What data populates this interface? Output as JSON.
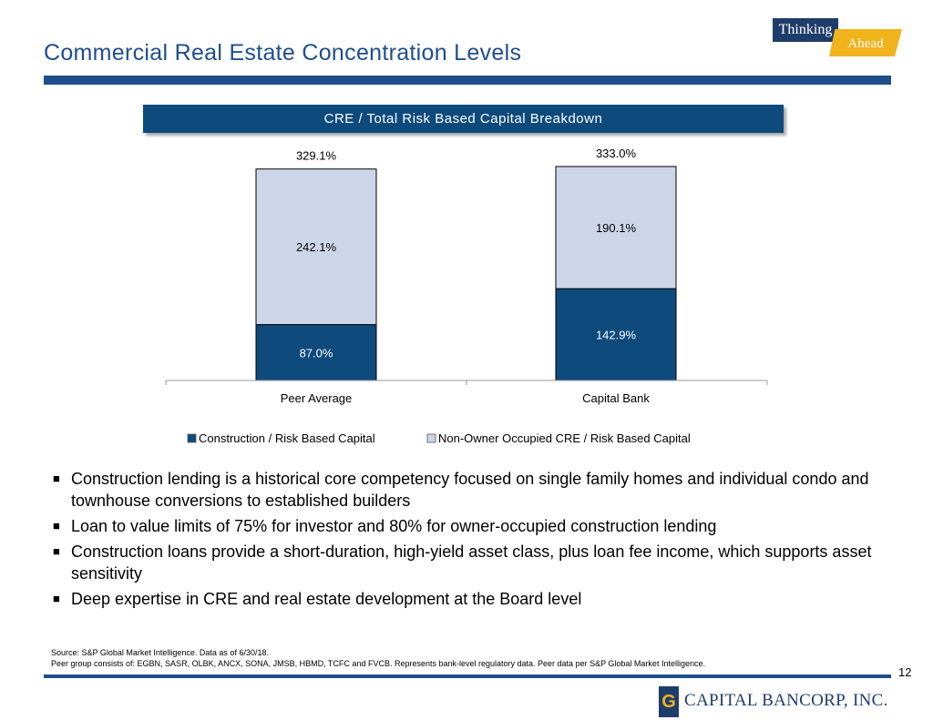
{
  "header": {
    "title": "Commercial Real Estate Concentration Levels",
    "logo_top": "Thinking",
    "logo_bottom": "Ahead"
  },
  "chart_banner": "CRE / Total Risk Based Capital Breakdown",
  "chart_data": {
    "type": "bar",
    "stacked": true,
    "title": "CRE / Total Risk Based Capital Breakdown",
    "categories": [
      "Peer Average",
      "Capital Bank"
    ],
    "series": [
      {
        "name": "Construction / Risk Based Capital",
        "values": [
          87.0,
          142.9
        ],
        "labels": [
          "87.0%",
          "142.9%"
        ],
        "color": "#0f4a7c"
      },
      {
        "name": "Non-Owner Occupied CRE / Risk Based Capital",
        "values": [
          242.1,
          190.1
        ],
        "labels": [
          "242.1%",
          "190.1%"
        ],
        "color": "#ccd6e8"
      }
    ],
    "totals": [
      329.1,
      333.0
    ],
    "total_labels": [
      "329.1%",
      "333.0%"
    ],
    "ylim": [
      0,
      340
    ],
    "xlabel": "",
    "ylabel": "",
    "legend_position": "bottom"
  },
  "bullets": [
    "Construction lending is a historical core competency focused on single family homes and individual condo and townhouse conversions to established builders",
    "Loan to value limits of 75% for investor and 80% for owner-occupied construction lending",
    "Construction loans provide a short-duration, high-yield asset class, plus loan fee income, which supports asset sensitivity",
    "Deep expertise in CRE and real estate development at the Board level"
  ],
  "bullet_marker": "■",
  "footnotes": {
    "source": "Source: S&P Global Market Intelligence. Data as of 6/30/18.",
    "peer": "Peer group consists of: EGBN, SASR, OLBK, ANCX, SONA, JMSB, HBMD, TCFC and FVCB. Represents bank-level regulatory data. Peer data per S&P Global Market Intelligence."
  },
  "page_number": "12",
  "brand": {
    "name": "CAPITAL BANCORP, INC.",
    "emblem": "G"
  }
}
